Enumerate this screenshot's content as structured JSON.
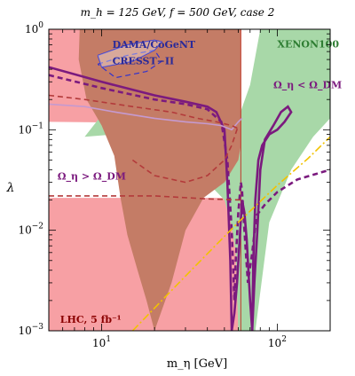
{
  "chart_data": {
    "type": "line",
    "title": "m_h = 125 GeV, f = 500 GeV, case 2",
    "xlabel": "m_η [GeV]",
    "ylabel": "λ",
    "xscale": "log",
    "yscale": "log",
    "xlim": [
      5,
      200
    ],
    "ylim": [
      0.001,
      1
    ],
    "x_ticks": [
      {
        "value": 10,
        "base": "10",
        "exp": "1"
      },
      {
        "value": 100,
        "base": "10",
        "exp": "2"
      }
    ],
    "y_ticks": [
      {
        "value": 0.001,
        "base": "10",
        "exp": "−3"
      },
      {
        "value": 0.01,
        "base": "10",
        "exp": "−2"
      },
      {
        "value": 0.1,
        "base": "10",
        "exp": "−1"
      },
      {
        "value": 1,
        "base": "10",
        "exp": "0"
      }
    ],
    "colors": {
      "lhc_region": "#f7a0a4",
      "xenon_region": "#a8d8a8",
      "overlap_region": "#c47c66",
      "relic_line": "#7b1a7e",
      "dama_line": "#3333cc",
      "light_purple": "#c59ad0",
      "yellow_line": "#f2c200",
      "background": "#ffffff"
    },
    "regions": [
      {
        "name": "LHC, 5 fb⁻¹",
        "color": "#f7a0a4",
        "polygons": [
          [
            [
              5,
              1
            ],
            [
              62,
              1
            ],
            [
              62,
              0.115
            ],
            [
              5,
              0.12
            ]
          ],
          [
            [
              5,
              0.021
            ],
            [
              62,
              0.021
            ],
            [
              62,
              0.001
            ],
            [
              5,
              0.001
            ]
          ]
        ]
      },
      {
        "name": "XENON100",
        "color": "#a8d8a8",
        "polygon": [
          [
            8,
            0.085
          ],
          [
            10,
            0.14
          ],
          [
            12,
            0.12
          ],
          [
            15,
            0.09
          ],
          [
            20,
            0.07
          ],
          [
            28,
            0.048
          ],
          [
            40,
            0.03
          ],
          [
            50,
            0.02
          ],
          [
            55,
            0.011
          ],
          [
            58,
            0.006
          ],
          [
            60,
            0.001
          ],
          [
            75,
            0.001
          ],
          [
            90,
            0.012
          ],
          [
            120,
            0.04
          ],
          [
            160,
            0.085
          ],
          [
            200,
            0.13
          ],
          [
            200,
            1
          ],
          [
            80,
            1
          ],
          [
            70,
            0.28
          ],
          [
            60,
            0.13
          ],
          [
            50,
            0.12
          ],
          [
            35,
            0.11
          ],
          [
            20,
            0.1
          ],
          [
            12,
            0.09
          ]
        ]
      },
      {
        "name": "overlap",
        "color": "#c47c66",
        "polygon": [
          [
            7.5,
            1
          ],
          [
            7.4,
            0.5
          ],
          [
            8.2,
            0.2
          ],
          [
            10,
            0.11
          ],
          [
            11.8,
            0.055
          ],
          [
            12.8,
            0.021
          ],
          [
            14,
            0.009
          ],
          [
            16,
            0.004
          ],
          [
            18,
            0.002
          ],
          [
            20,
            0.001
          ],
          [
            25,
            0.003
          ],
          [
            30,
            0.01
          ],
          [
            38,
            0.021
          ],
          [
            50,
            0.03
          ],
          [
            60,
            0.05
          ],
          [
            62,
            0.07
          ],
          [
            62,
            1
          ]
        ]
      }
    ],
    "series": [
      {
        "name": "Ω_η < Ω_DM",
        "style": "solid",
        "color": "#7b1a7e",
        "points": [
          [
            5,
            0.42
          ],
          [
            10,
            0.3
          ],
          [
            20,
            0.22
          ],
          [
            30,
            0.19
          ],
          [
            40,
            0.17
          ],
          [
            45,
            0.15
          ],
          [
            50,
            0.1
          ],
          [
            52,
            0.03
          ],
          [
            54,
            0.005
          ],
          [
            55,
            0.001
          ],
          [
            57,
            0.0015
          ],
          [
            59,
            0.003
          ],
          [
            61,
            0.008
          ],
          [
            63,
            0.02
          ],
          [
            65,
            0.015
          ],
          [
            67,
            0.008
          ],
          [
            70,
            0.002
          ],
          [
            72,
            0.001
          ],
          [
            74,
            0.003
          ],
          [
            77,
            0.01
          ],
          [
            80,
            0.04
          ],
          [
            85,
            0.08
          ],
          [
            95,
            0.11
          ],
          [
            105,
            0.15
          ],
          [
            115,
            0.17
          ],
          [
            120,
            0.15
          ],
          [
            110,
            0.12
          ],
          [
            100,
            0.1
          ],
          [
            90,
            0.09
          ],
          [
            82,
            0.07
          ],
          [
            78,
            0.05
          ],
          [
            75,
            0.02
          ],
          [
            73,
            0.005
          ],
          [
            72,
            0.001
          ]
        ]
      },
      {
        "name": "relic dashed",
        "style": "dashed",
        "color": "#7b1a7e",
        "points": [
          [
            5,
            0.35
          ],
          [
            10,
            0.26
          ],
          [
            20,
            0.2
          ],
          [
            30,
            0.18
          ],
          [
            40,
            0.16
          ],
          [
            48,
            0.12
          ],
          [
            52,
            0.05
          ],
          [
            55,
            0.01
          ],
          [
            57,
            0.002
          ],
          [
            58,
            0.005
          ],
          [
            60,
            0.015
          ],
          [
            62,
            0.03
          ],
          [
            63,
            0.025
          ],
          [
            65,
            0.01
          ],
          [
            68,
            0.003
          ],
          [
            72,
            0.006
          ],
          [
            76,
            0.014
          ],
          [
            85,
            0.018
          ],
          [
            100,
            0.024
          ],
          [
            130,
            0.032
          ],
          [
            200,
            0.04
          ]
        ]
      },
      {
        "name": "light purple",
        "style": "solid",
        "color": "#c59ad0",
        "points": [
          [
            5,
            0.18
          ],
          [
            8,
            0.17
          ],
          [
            12,
            0.15
          ],
          [
            20,
            0.13
          ],
          [
            30,
            0.12
          ],
          [
            40,
            0.115
          ],
          [
            48,
            0.11
          ],
          [
            55,
            0.1
          ],
          [
            60,
            0.12
          ],
          [
            63,
            0.13
          ]
        ]
      },
      {
        "name": "yellow",
        "style": "dashdot",
        "color": "#f2c200",
        "points": [
          [
            15,
            0.001
          ],
          [
            30,
            0.0035
          ],
          [
            60,
            0.012
          ],
          [
            100,
            0.028
          ],
          [
            150,
            0.052
          ],
          [
            200,
            0.085
          ]
        ]
      },
      {
        "name": "DAMA/CoGeNT CRESST−II upper",
        "style": "solid",
        "color": "#3333cc",
        "points": [
          [
            9.5,
            0.55
          ],
          [
            14,
            0.7
          ],
          [
            20,
            0.78
          ],
          [
            22,
            0.75
          ],
          [
            20,
            0.62
          ],
          [
            15,
            0.48
          ],
          [
            10,
            0.42
          ],
          [
            9.5,
            0.55
          ]
        ]
      },
      {
        "name": "DAMA/CoGeNT CRESST−II lower",
        "style": "dashed",
        "color": "#3333cc",
        "points": [
          [
            9.5,
            0.45
          ],
          [
            14,
            0.55
          ],
          [
            20,
            0.62
          ],
          [
            22,
            0.48
          ],
          [
            18,
            0.38
          ],
          [
            12,
            0.33
          ],
          [
            9.5,
            0.45
          ]
        ]
      },
      {
        "name": "red dashed lower",
        "style": "dashed",
        "color": "#b33a3a",
        "points": [
          [
            15,
            0.05
          ],
          [
            20,
            0.035
          ],
          [
            30,
            0.03
          ],
          [
            40,
            0.035
          ],
          [
            50,
            0.05
          ],
          [
            55,
            0.07
          ],
          [
            60,
            0.11
          ]
        ]
      },
      {
        "name": "red dashed upper",
        "style": "dashed",
        "color": "#b33a3a",
        "points": [
          [
            5,
            0.22
          ],
          [
            8,
            0.2
          ],
          [
            15,
            0.17
          ],
          [
            25,
            0.15
          ],
          [
            35,
            0.13
          ],
          [
            45,
            0.12
          ],
          [
            55,
            0.11
          ],
          [
            62,
            0.1
          ]
        ]
      },
      {
        "name": "red dashed band",
        "style": "dashed",
        "color": "#b33a3a",
        "points": [
          [
            5,
            0.022
          ],
          [
            20,
            0.022
          ],
          [
            40,
            0.0205
          ],
          [
            62,
            0.02
          ]
        ]
      }
    ],
    "annotations": [
      {
        "text": "DAMA/CoGeNT",
        "color": "#2a2a99",
        "at": [
          11.5,
          0.65
        ]
      },
      {
        "text": "CRESST−II",
        "color": "#2a2a99",
        "at": [
          11.5,
          0.45
        ]
      },
      {
        "text": "XENON100",
        "color": "#2e7d32",
        "at": [
          100,
          0.66
        ]
      },
      {
        "text": "Ω_η < Ω_DM",
        "color": "#7b1a7e",
        "at": [
          95,
          0.26
        ]
      },
      {
        "text": "Ω_η > Ω_DM",
        "color": "#7b1a7e",
        "at": [
          5.6,
          0.032
        ]
      },
      {
        "text": "LHC, 5 fb⁻¹",
        "color": "#8b0000",
        "at": [
          5.8,
          0.0012
        ]
      }
    ]
  }
}
